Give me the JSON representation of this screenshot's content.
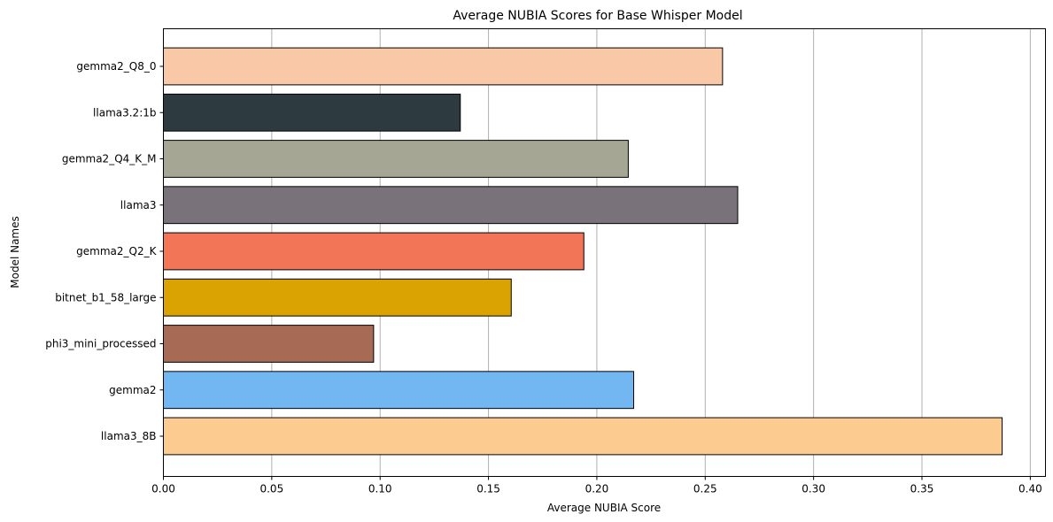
{
  "chart_data": {
    "type": "bar",
    "orientation": "horizontal",
    "title": "Average NUBIA Scores for Base Whisper Model",
    "xlabel": "Average NUBIA Score",
    "ylabel": "Model Names",
    "xlim": [
      0,
      0.407
    ],
    "xticks": [
      0.0,
      0.05,
      0.1,
      0.15,
      0.2,
      0.25,
      0.3,
      0.35,
      0.4
    ],
    "xtick_labels": [
      "0.00",
      "0.05",
      "0.10",
      "0.15",
      "0.20",
      "0.25",
      "0.30",
      "0.35",
      "0.40"
    ],
    "grid": "vertical",
    "categories": [
      "gemma2_Q8_0",
      "llama3.2:1b",
      "gemma2_Q4_K_M",
      "llama3",
      "gemma2_Q2_K",
      "bitnet_b1_58_large",
      "phi3_mini_processed",
      "gemma2",
      "llama3_8B"
    ],
    "values": [
      0.258,
      0.137,
      0.2145,
      0.265,
      0.194,
      0.1605,
      0.097,
      0.217,
      0.387
    ],
    "colors": [
      "#f9c8a6",
      "#2d3a40",
      "#a5a693",
      "#7a727a",
      "#f37557",
      "#dba302",
      "#a76a55",
      "#72b6f2",
      "#fbcb8f"
    ],
    "edge_color": "#000000",
    "grid_color": "#b0b0b0"
  }
}
